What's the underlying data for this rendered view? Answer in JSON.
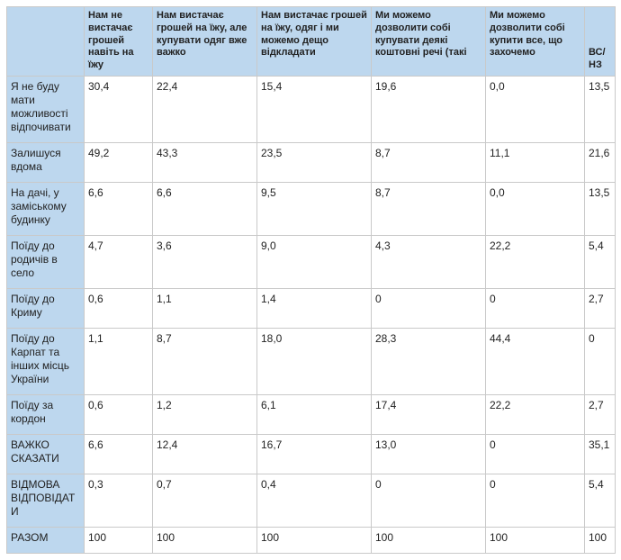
{
  "colors": {
    "header_bg": "#bdd7ee",
    "border_color": "#c9c9c9",
    "outer_border": "#8f8f8f",
    "text_color": "#222222",
    "cell_bg": "#ffffff"
  },
  "table": {
    "columns": [
      "",
      "Нам не вистачає грошей навіть на їжу",
      "Нам вистачає грошей на їжу, але купувати одяг вже важко",
      "Нам вистачає грошей на їжу, одяг і ми можемо дещо відкладати",
      "Ми можемо дозволити собі купувати деякі коштовні речі (такі",
      "Ми можемо дозволити собі купити все, що захочемо",
      "ВС/НЗ"
    ],
    "rows": [
      {
        "label": "Я не буду мати можливості відпочивати",
        "values": [
          "30,4",
          "22,4",
          "15,4",
          "19,6",
          "0,0",
          "13,5"
        ]
      },
      {
        "label": "Залишуся вдома",
        "values": [
          "49,2",
          "43,3",
          "23,5",
          "8,7",
          "11,1",
          "21,6"
        ]
      },
      {
        "label": "На дачі, у заміському будинку",
        "values": [
          "6,6",
          "6,6",
          "9,5",
          "8,7",
          "0,0",
          "13,5"
        ]
      },
      {
        "label": "Поїду до родичів в село",
        "values": [
          "4,7",
          "3,6",
          "9,0",
          "4,3",
          "22,2",
          "5,4"
        ]
      },
      {
        "label": "Поїду до Криму",
        "values": [
          "0,6",
          "1,1",
          "1,4",
          "0",
          "0",
          "2,7"
        ]
      },
      {
        "label": "Поїду до Карпат та інших місць України",
        "values": [
          "1,1",
          "8,7",
          "18,0",
          "28,3",
          "44,4",
          "0"
        ]
      },
      {
        "label": "Поїду за кордон",
        "values": [
          "0,6",
          "1,2",
          "6,1",
          "17,4",
          "22,2",
          "2,7"
        ]
      },
      {
        "label": "ВАЖКО СКАЗАТИ",
        "values": [
          "6,6",
          "12,4",
          "16,7",
          "13,0",
          "0",
          "35,1"
        ]
      },
      {
        "label": "ВІДМОВА ВІДПОВІДАТИ",
        "values": [
          "0,3",
          "0,7",
          "0,4",
          "0",
          "0",
          "5,4"
        ]
      },
      {
        "label": "РАЗОМ",
        "values": [
          "100",
          "100",
          "100",
          "100",
          "100",
          "100"
        ]
      }
    ]
  },
  "chart_data": {
    "type": "table",
    "title": "",
    "columns": [
      "Нам не вистачає грошей навіть на їжу",
      "Нам вистачає грошей на їжу, але купувати одяг вже важко",
      "Нам вистачає грошей на їжу, одяг і ми можемо дещо відкладати",
      "Ми можемо дозволити собі купувати деякі коштовні речі (такі",
      "Ми можемо дозволити собі купити все, що захочемо",
      "ВС/НЗ"
    ],
    "categories": [
      "Я не буду мати можливості відпочивати",
      "Залишуся вдома",
      "На дачі, у заміському будинку",
      "Поїду до родичів в село",
      "Поїду до Криму",
      "Поїду до Карпат та інших місць України",
      "Поїду за кордон",
      "ВАЖКО СКАЗАТИ",
      "ВІДМОВА ВІДПОВІДАТИ",
      "РАЗОМ"
    ],
    "series": [
      {
        "name": "Нам не вистачає грошей навіть на їжу",
        "values": [
          30.4,
          49.2,
          6.6,
          4.7,
          0.6,
          1.1,
          0.6,
          6.6,
          0.3,
          100
        ]
      },
      {
        "name": "Нам вистачає грошей на їжу, але купувати одяг вже важко",
        "values": [
          22.4,
          43.3,
          6.6,
          3.6,
          1.1,
          8.7,
          1.2,
          12.4,
          0.7,
          100
        ]
      },
      {
        "name": "Нам вистачає грошей на їжу, одяг і ми можемо дещо відкладати",
        "values": [
          15.4,
          23.5,
          9.5,
          9.0,
          1.4,
          18.0,
          6.1,
          16.7,
          0.4,
          100
        ]
      },
      {
        "name": "Ми можемо дозволити собі купувати деякі коштовні речі (такі",
        "values": [
          19.6,
          8.7,
          8.7,
          4.3,
          0,
          28.3,
          17.4,
          13.0,
          0,
          100
        ]
      },
      {
        "name": "Ми можемо дозволити собі купити все, що захочемо",
        "values": [
          0.0,
          11.1,
          0.0,
          22.2,
          0,
          44.4,
          22.2,
          0,
          0,
          100
        ]
      },
      {
        "name": "ВС/НЗ",
        "values": [
          13.5,
          21.6,
          13.5,
          5.4,
          2.7,
          0,
          2.7,
          35.1,
          5.4,
          100
        ]
      }
    ]
  }
}
